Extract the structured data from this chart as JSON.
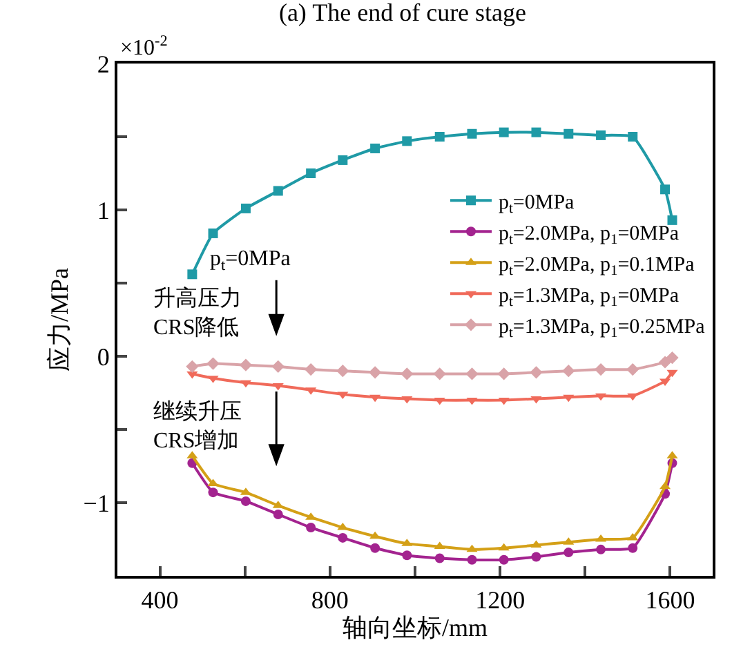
{
  "chart_data": {
    "type": "line",
    "title": "(a) The end of cure stage",
    "xlabel": "轴向坐标/mm",
    "ylabel": "应力/MPa",
    "annotations": [
      "×10$^{-2}$",
      "p$_{t}$=0MPa",
      "升高压力\nCRS降低",
      "继续升压\nCRS增加"
    ],
    "x": [
      476,
      525,
      602,
      678,
      755,
      830,
      906,
      981,
      1058,
      1134,
      1209,
      1285,
      1361,
      1437,
      1512,
      1588,
      1605
    ],
    "series": [
      {
        "name": "p$_{t}$=0MPa",
        "color": "#1f9aa6",
        "marker": "square",
        "values": [
          0.56,
          0.84,
          1.01,
          1.13,
          1.25,
          1.34,
          1.42,
          1.47,
          1.5,
          1.52,
          1.53,
          1.53,
          1.52,
          1.51,
          1.5,
          1.14,
          0.93
        ]
      },
      {
        "name": "p$_{t}$=2.0MPa, p$_{1}$=0MPa",
        "color": "#a3238f",
        "marker": "circle",
        "values": [
          -0.73,
          -0.93,
          -0.99,
          -1.08,
          -1.17,
          -1.24,
          -1.31,
          -1.36,
          -1.38,
          -1.39,
          -1.39,
          -1.37,
          -1.34,
          -1.32,
          -1.31,
          -0.94,
          -0.73
        ]
      },
      {
        "name": "p$_{t}$=2.0MPa, p$_{1}$=0.1MPa",
        "color": "#d4a017",
        "marker": "triangle",
        "values": [
          -0.68,
          -0.87,
          -0.93,
          -1.02,
          -1.1,
          -1.17,
          -1.23,
          -1.28,
          -1.3,
          -1.32,
          -1.31,
          -1.29,
          -1.27,
          -1.25,
          -1.24,
          -0.89,
          -0.68
        ]
      },
      {
        "name": "p$_{t}$=1.3MPa, p$_{1}$=0MPa",
        "color": "#f06a5a",
        "marker": "triangle-down",
        "values": [
          -0.12,
          -0.15,
          -0.18,
          -0.2,
          -0.23,
          -0.26,
          -0.28,
          -0.29,
          -0.3,
          -0.3,
          -0.3,
          -0.29,
          -0.28,
          -0.27,
          -0.27,
          -0.17,
          -0.11
        ]
      },
      {
        "name": "p$_{t}$=1.3MPa, p$_{1}$=0.25MPa",
        "color": "#d9a3a8",
        "marker": "diamond",
        "values": [
          -0.07,
          -0.05,
          -0.06,
          -0.07,
          -0.09,
          -0.1,
          -0.11,
          -0.12,
          -0.12,
          -0.12,
          -0.12,
          -0.11,
          -0.1,
          -0.09,
          -0.09,
          -0.04,
          -0.01
        ]
      }
    ],
    "xlim": [
      300,
      1700
    ],
    "ylim": [
      -1.5,
      2
    ],
    "xticks": [
      400,
      {
        "value": 600,
        "label": null
      },
      800,
      {
        "value": 1000,
        "label": null
      },
      1200,
      {
        "value": 1400,
        "label": null
      },
      1600
    ],
    "yticks": [
      {
        "value": -1,
        "label": "−1"
      },
      {
        "value": -0.5,
        "label": null
      },
      0,
      {
        "value": 0.5,
        "label": null
      },
      1,
      {
        "value": 1.5,
        "label": null
      },
      2
    ],
    "grid": false,
    "legend": "center right",
    "line_style": "solid"
  }
}
